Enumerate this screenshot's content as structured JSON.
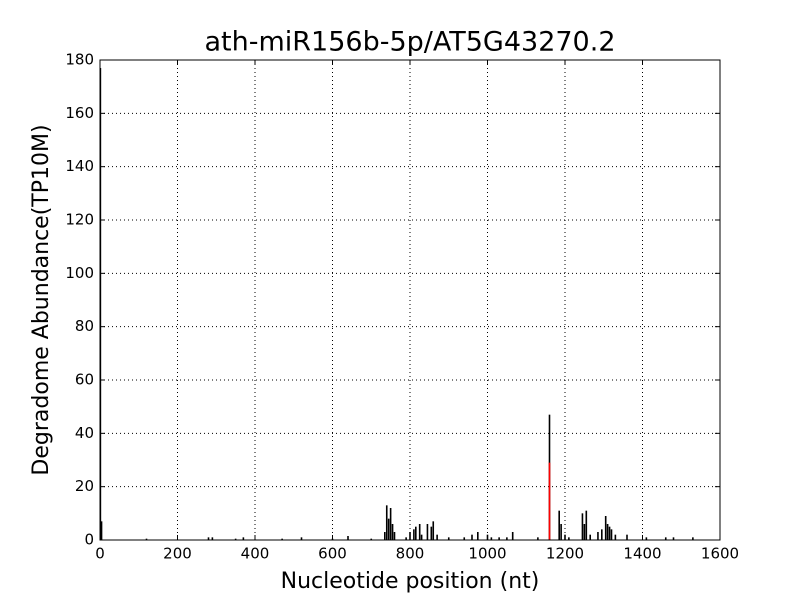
{
  "chart_data": {
    "type": "vlines",
    "title": "ath-miR156b-5p/AT5G43270.2",
    "xlabel": "Nucleotide position (nt)",
    "ylabel": "Degradome Abundance(TP10M)",
    "xlim": [
      0,
      1600
    ],
    "ylim": [
      0,
      180
    ],
    "xticks": [
      0,
      200,
      400,
      600,
      800,
      1000,
      1200,
      1400,
      1600
    ],
    "yticks": [
      0,
      20,
      40,
      60,
      80,
      100,
      120,
      140,
      160,
      180
    ],
    "grid": true,
    "series": [
      {
        "color": "#000000",
        "x": [
          1,
          4,
          120,
          280,
          290,
          350,
          370,
          470,
          520,
          600,
          640,
          700,
          735,
          740,
          745,
          750,
          755,
          760,
          790,
          800,
          810,
          815,
          825,
          830,
          845,
          855,
          860,
          870,
          900,
          940,
          960,
          975,
          1000,
          1010,
          1030,
          1050,
          1065,
          1130,
          1160,
          1185,
          1190,
          1200,
          1210,
          1245,
          1250,
          1255,
          1265,
          1285,
          1295,
          1305,
          1310,
          1315,
          1320,
          1330,
          1360,
          1410,
          1460,
          1480,
          1530
        ],
        "values": [
          177,
          7,
          0.5,
          1,
          1,
          0.5,
          1,
          0.5,
          1,
          0.5,
          1.5,
          0.5,
          3,
          13,
          8,
          12,
          6,
          3,
          1,
          3,
          4,
          5,
          6,
          2,
          6,
          5,
          7,
          2,
          1,
          1,
          2,
          3,
          2,
          1,
          1,
          1,
          3,
          1,
          47,
          11,
          6,
          2,
          1,
          10,
          6,
          11,
          2,
          3,
          4,
          9,
          6,
          5,
          4,
          2,
          2,
          1,
          1,
          1,
          1
        ]
      },
      {
        "color": "#ff0000",
        "x": [
          1160
        ],
        "values": [
          29
        ]
      }
    ]
  }
}
